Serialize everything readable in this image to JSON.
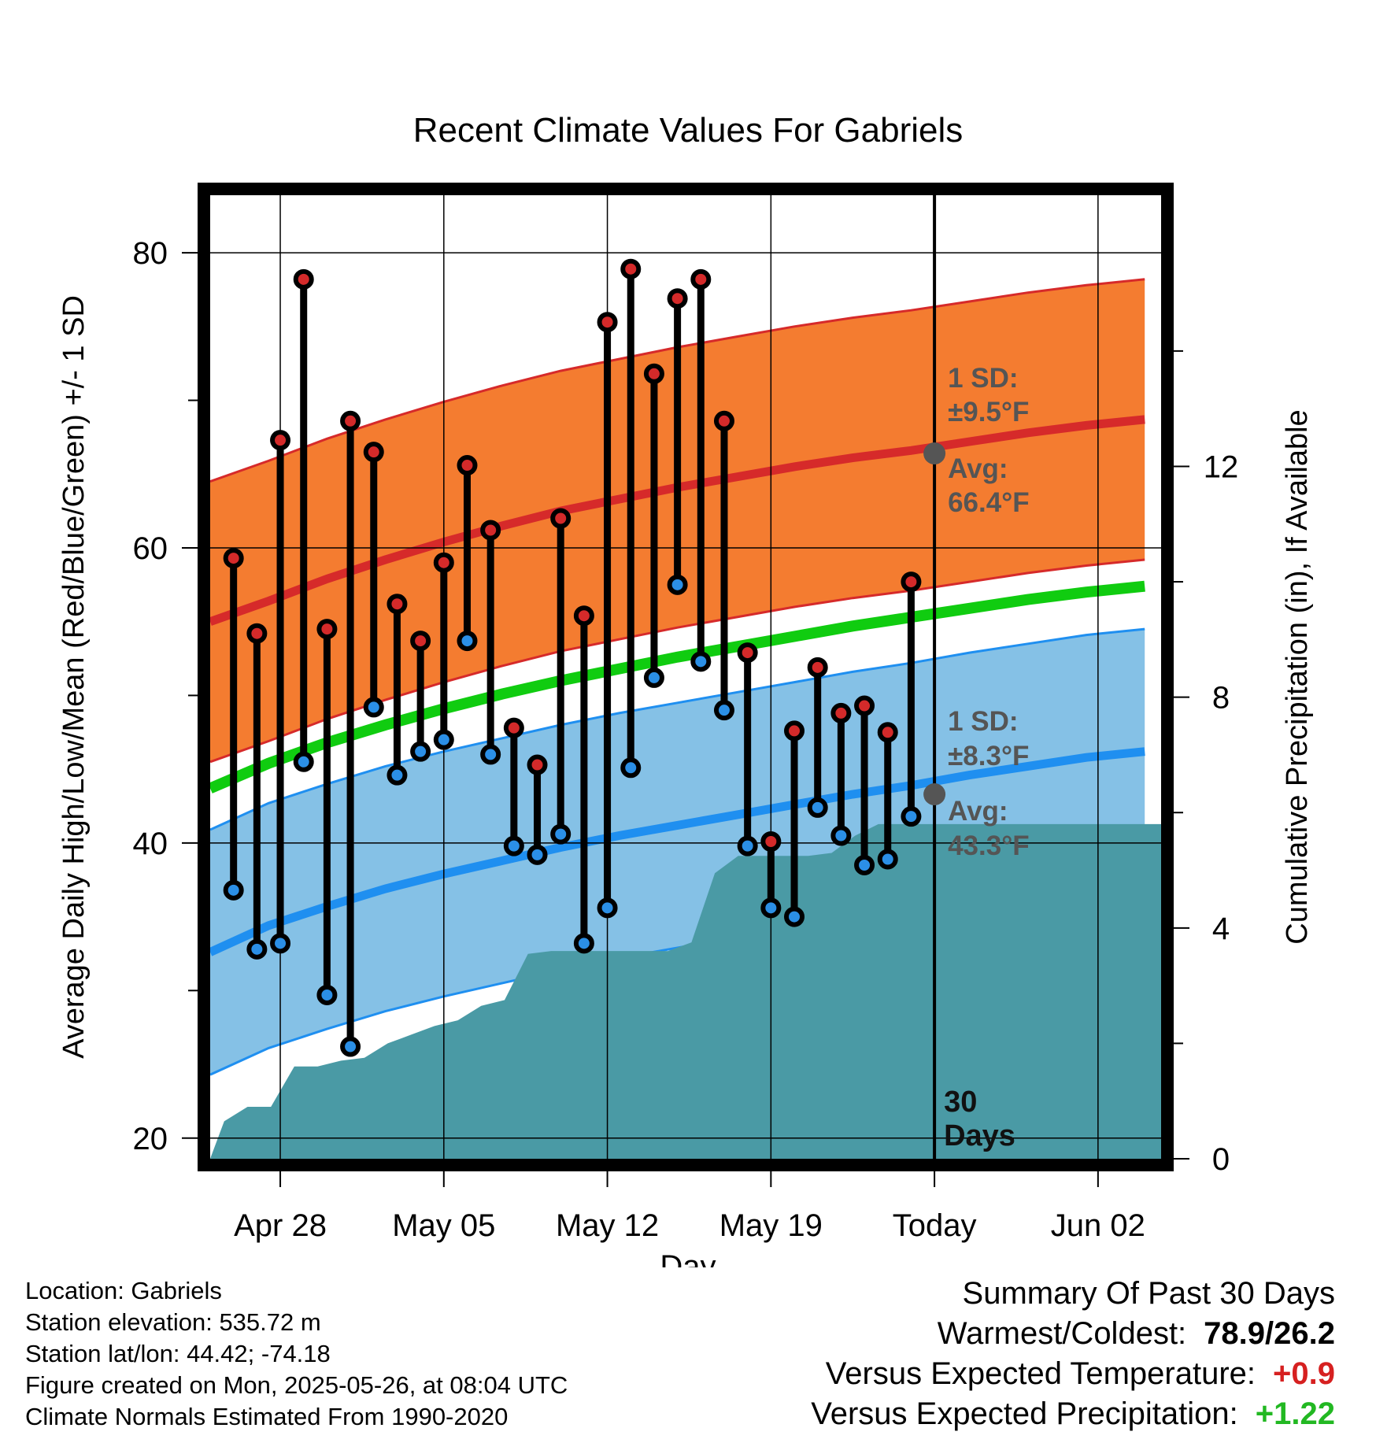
{
  "chart_data": {
    "type": "line",
    "title": "Recent Climate Values For Gabriels",
    "xlabel": "Day",
    "ylabel": "Average Daily High/Low/Mean (Red/Blue/Green) +/- 1 SD",
    "y2label": "Cumulative Precipitation (in), If Available",
    "ylim": [
      18.6,
      83.9
    ],
    "y2lim": [
      0,
      16.7
    ],
    "yticks": [
      20,
      40,
      60,
      80
    ],
    "y2ticks": [
      0,
      4,
      8,
      12
    ],
    "xticks": [
      "Apr 28",
      "May 05",
      "May 12",
      "May 19",
      "Today",
      "Jun 02"
    ],
    "x_range_days_from_apr25": [
      0.0,
      40.7
    ],
    "today_marker_label_line1": "30",
    "today_marker_label_line2": "Days",
    "normals": {
      "high_avg": [
        55.0,
        56.4,
        57.9,
        59.2,
        60.4,
        61.5,
        62.5,
        63.3,
        64.1,
        64.8,
        65.5,
        66.1,
        66.6,
        67.2,
        67.8,
        68.3,
        68.7
      ],
      "high_sd": 9.5,
      "low_avg": [
        32.6,
        34.4,
        35.7,
        36.9,
        37.9,
        38.8,
        39.7,
        40.5,
        41.2,
        41.9,
        42.6,
        43.3,
        43.9,
        44.6,
        45.2,
        45.8,
        46.2
      ],
      "low_sd": 8.3,
      "mean_avg": [
        43.7,
        45.4,
        46.8,
        48.0,
        49.1,
        50.1,
        51.0,
        51.8,
        52.6,
        53.3,
        54.0,
        54.7,
        55.3,
        55.9,
        56.5,
        57.0,
        57.4
      ]
    },
    "normal_days_step": 2.5,
    "annotation_high_sd": "1 SD:",
    "annotation_high_sd_value": "±9.5°F",
    "annotation_high_avg": "Avg:",
    "annotation_high_avg_value": "66.4°F",
    "annotation_low_sd": "1 SD:",
    "annotation_low_sd_value": "±8.3°F",
    "annotation_low_avg": "Avg:",
    "annotation_low_avg_value": "43.3°F",
    "today_day": 31,
    "today_high_avg": 66.4,
    "today_low_avg": 43.3,
    "observations": [
      {
        "day": 1,
        "high": 59.3,
        "low": 36.8
      },
      {
        "day": 2,
        "high": 54.2,
        "low": 32.8
      },
      {
        "day": 3,
        "high": 67.3,
        "low": 33.2
      },
      {
        "day": 4,
        "high": 78.2,
        "low": 45.5
      },
      {
        "day": 5,
        "high": 54.5,
        "low": 29.7
      },
      {
        "day": 6,
        "high": 68.6,
        "low": 26.2
      },
      {
        "day": 7,
        "high": 66.5,
        "low": 49.2
      },
      {
        "day": 8,
        "high": 56.2,
        "low": 44.6
      },
      {
        "day": 9,
        "high": 53.7,
        "low": 46.2
      },
      {
        "day": 10,
        "high": 59.0,
        "low": 47.0
      },
      {
        "day": 11,
        "high": 65.6,
        "low": 53.7
      },
      {
        "day": 12,
        "high": 61.2,
        "low": 46.0
      },
      {
        "day": 13,
        "high": 47.8,
        "low": 39.8
      },
      {
        "day": 14,
        "high": 45.3,
        "low": 39.2
      },
      {
        "day": 15,
        "high": 62.0,
        "low": 40.6
      },
      {
        "day": 16,
        "high": 55.4,
        "low": 33.2
      },
      {
        "day": 17,
        "high": 75.3,
        "low": 35.6
      },
      {
        "day": 18,
        "high": 78.9,
        "low": 45.1
      },
      {
        "day": 19,
        "high": 71.8,
        "low": 51.2
      },
      {
        "day": 20,
        "high": 76.9,
        "low": 57.5
      },
      {
        "day": 21,
        "high": 78.2,
        "low": 52.3
      },
      {
        "day": 22,
        "high": 68.6,
        "low": 49.0
      },
      {
        "day": 23,
        "high": 52.9,
        "low": 39.8
      },
      {
        "day": 24,
        "high": 40.1,
        "low": 35.6
      },
      {
        "day": 25,
        "high": 47.6,
        "low": 35.0
      },
      {
        "day": 26,
        "high": 51.9,
        "low": 42.4
      },
      {
        "day": 27,
        "high": 48.8,
        "low": 40.5
      },
      {
        "day": 28,
        "high": 49.3,
        "low": 38.5
      },
      {
        "day": 29,
        "high": 47.5,
        "low": 38.9
      },
      {
        "day": 30,
        "high": 57.7,
        "low": 41.8
      }
    ],
    "precip_cumulative": {
      "days": [
        0,
        0.6,
        1.6,
        2.6,
        3.6,
        4.6,
        5.6,
        6.6,
        7.6,
        8.6,
        9.6,
        10.6,
        11.6,
        12.6,
        13.6,
        14.6,
        15.6,
        16.6,
        17.6,
        18.6,
        19.6,
        20.6,
        21.6,
        22.6,
        23.6,
        24.6,
        25.6,
        26.6,
        27.6,
        28.6,
        29.6,
        30.6,
        40.7
      ],
      "values": [
        0,
        0.65,
        0.9,
        0.9,
        1.6,
        1.6,
        1.7,
        1.75,
        2.0,
        2.15,
        2.3,
        2.4,
        2.65,
        2.75,
        3.55,
        3.6,
        3.6,
        3.6,
        3.6,
        3.6,
        3.6,
        3.75,
        4.95,
        5.25,
        5.25,
        5.25,
        5.25,
        5.3,
        5.6,
        5.8,
        5.8,
        5.8,
        5.8
      ]
    }
  },
  "footer": {
    "location": "Location: Gabriels",
    "elevation": "Station elevation: 535.72 m",
    "latlon": "Station lat/lon: 44.42; -74.18",
    "created": "Figure created on Mon, 2025-05-26, at 08:04 UTC",
    "normals": "Climate Normals Estimated From 1990-2020"
  },
  "summary": {
    "title": "Summary Of Past 30 Days",
    "warm_label": "Warmest/Coldest:",
    "warm_value": "78.9/26.2",
    "temp_label": "Versus Expected Temperature:",
    "temp_value": "+0.9",
    "precip_label": "Versus Expected Precipitation:",
    "precip_value": "+1.22"
  },
  "colors": {
    "high_band": "#f47c30",
    "high_line": "#d62a2a",
    "low_band": "#85c1e6",
    "low_line": "#1f8ff0",
    "mean_line": "#10cc10",
    "precip": "#4a9aa5",
    "high_dot": "#d42a2a",
    "low_dot": "#2b8fe6",
    "annotation": "#555555"
  }
}
